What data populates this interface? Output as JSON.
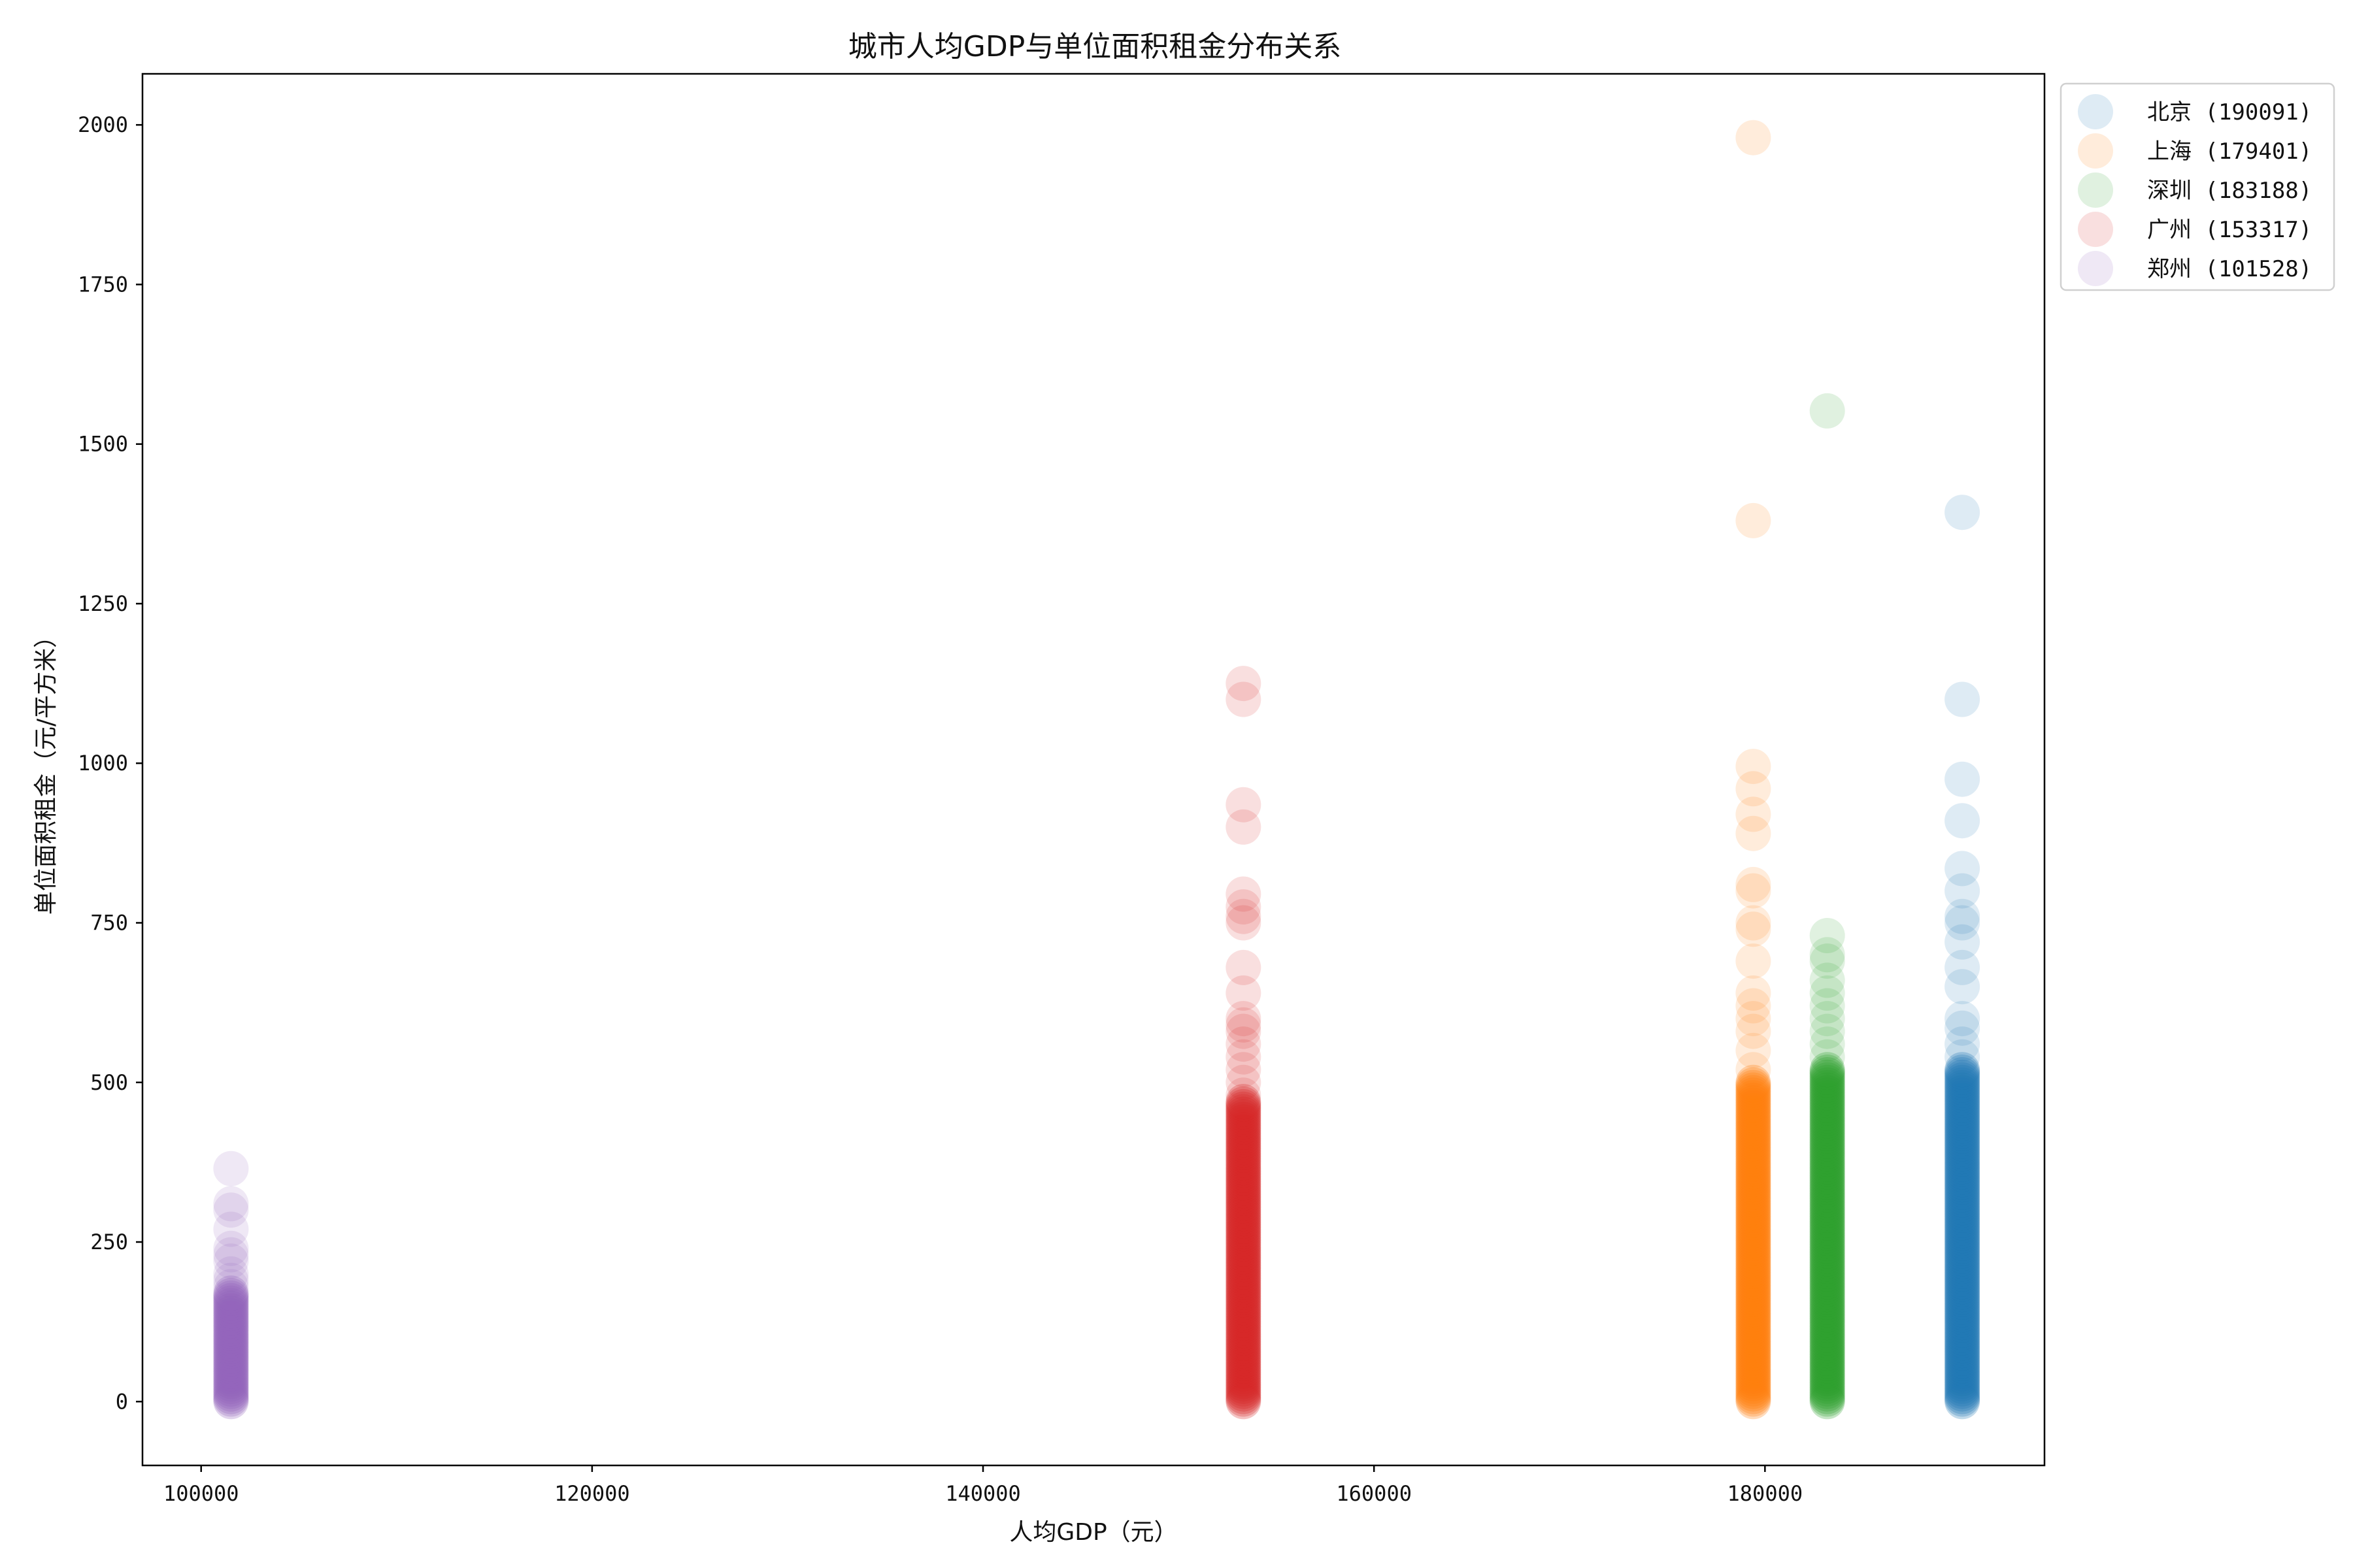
{
  "chart_data": {
    "type": "scatter",
    "title": "城市人均GDP与单位面积租金分布关系",
    "xlabel": "人均GDP（元）",
    "ylabel": "单位面积租金（元/平方米）",
    "xlim": [
      97000,
      194300
    ],
    "ylim": [
      -100,
      2080
    ],
    "xticks": [
      100000,
      120000,
      140000,
      160000,
      180000
    ],
    "yticks": [
      0,
      250,
      500,
      750,
      1000,
      1250,
      1500,
      1750,
      2000
    ],
    "grid": false,
    "legend_position": "outside-top-right",
    "marker_alpha": 0.15,
    "series": [
      {
        "name": "北京 (190091)",
        "label": "北京 (190091)",
        "color": "#1f77b4",
        "x": 190091,
        "y_outliers": [
          1393,
          1100,
          975,
          910,
          835,
          800,
          760,
          750,
          720,
          680,
          650,
          600,
          585,
          560,
          540
        ],
        "y_dense_range": [
          0,
          520
        ]
      },
      {
        "name": "上海 (179401)",
        "label": "上海 (179401)",
        "color": "#ff7f0e",
        "x": 179401,
        "y_outliers": [
          1980,
          1380,
          995,
          960,
          920,
          890,
          810,
          800,
          750,
          740,
          690,
          640,
          620,
          600,
          580,
          550,
          520
        ],
        "y_dense_range": [
          0,
          500
        ]
      },
      {
        "name": "深圳 (183188)",
        "label": "深圳 (183188)",
        "color": "#2ca02c",
        "x": 183188,
        "y_outliers": [
          1552,
          730,
          700,
          690,
          660,
          640,
          620,
          600,
          580,
          560,
          540
        ],
        "y_dense_range": [
          0,
          520
        ]
      },
      {
        "name": "广州 (153317)",
        "label": "广州 (153317)",
        "color": "#d62728",
        "x": 153317,
        "y_outliers": [
          1125,
          1100,
          935,
          900,
          795,
          775,
          760,
          750,
          680,
          640,
          600,
          590,
          580,
          560,
          540,
          520,
          500,
          480
        ],
        "y_dense_range": [
          0,
          470
        ]
      },
      {
        "name": "郑州 (101528)",
        "label": "郑州 (101528)",
        "color": "#9467bd",
        "x": 101528,
        "y_outliers": [
          365,
          310,
          300,
          270,
          240,
          230,
          220,
          200,
          190,
          180
        ],
        "y_dense_range": [
          0,
          170
        ]
      }
    ]
  },
  "legend": {
    "items": [
      {
        "label": "北京 (190091)",
        "color": "#1f77b4"
      },
      {
        "label": "上海 (179401)",
        "color": "#ff7f0e"
      },
      {
        "label": "深圳 (183188)",
        "color": "#2ca02c"
      },
      {
        "label": "广州 (153317)",
        "color": "#d62728"
      },
      {
        "label": "郑州 (101528)",
        "color": "#9467bd"
      }
    ]
  }
}
